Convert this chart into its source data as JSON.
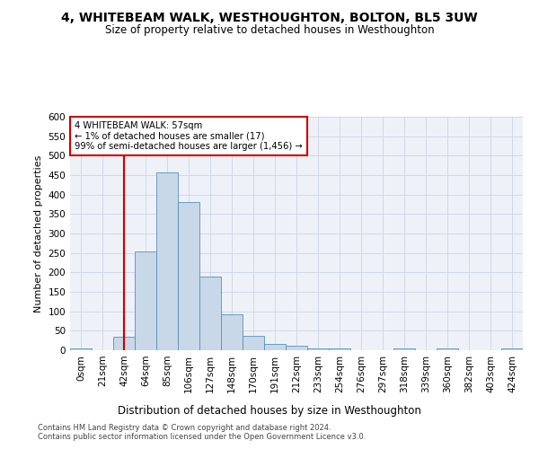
{
  "title": "4, WHITEBEAM WALK, WESTHOUGHTON, BOLTON, BL5 3UW",
  "subtitle": "Size of property relative to detached houses in Westhoughton",
  "xlabel": "Distribution of detached houses by size in Westhoughton",
  "ylabel": "Number of detached properties",
  "footnote1": "Contains HM Land Registry data © Crown copyright and database right 2024.",
  "footnote2": "Contains public sector information licensed under the Open Government Licence v3.0.",
  "bar_labels": [
    "0sqm",
    "21sqm",
    "42sqm",
    "64sqm",
    "85sqm",
    "106sqm",
    "127sqm",
    "148sqm",
    "170sqm",
    "191sqm",
    "212sqm",
    "233sqm",
    "254sqm",
    "276sqm",
    "297sqm",
    "318sqm",
    "339sqm",
    "360sqm",
    "382sqm",
    "403sqm",
    "424sqm"
  ],
  "bar_values": [
    4,
    0,
    35,
    253,
    458,
    380,
    190,
    92,
    36,
    17,
    12,
    5,
    4,
    1,
    0,
    5,
    0,
    4,
    0,
    0,
    4
  ],
  "bar_color": "#c8d8e8",
  "bar_edge_color": "#5590bb",
  "ylim": [
    0,
    600
  ],
  "yticks": [
    0,
    50,
    100,
    150,
    200,
    250,
    300,
    350,
    400,
    450,
    500,
    550,
    600
  ],
  "vline_x": 2.5,
  "annotation_text": "4 WHITEBEAM WALK: 57sqm\n← 1% of detached houses are smaller (17)\n99% of semi-detached houses are larger (1,456) →",
  "annotation_box_color": "#ffffff",
  "annotation_box_edgecolor": "#cc0000",
  "vline_color": "#cc0000",
  "grid_color": "#d0d8e8",
  "bg_color": "#eef2f8"
}
